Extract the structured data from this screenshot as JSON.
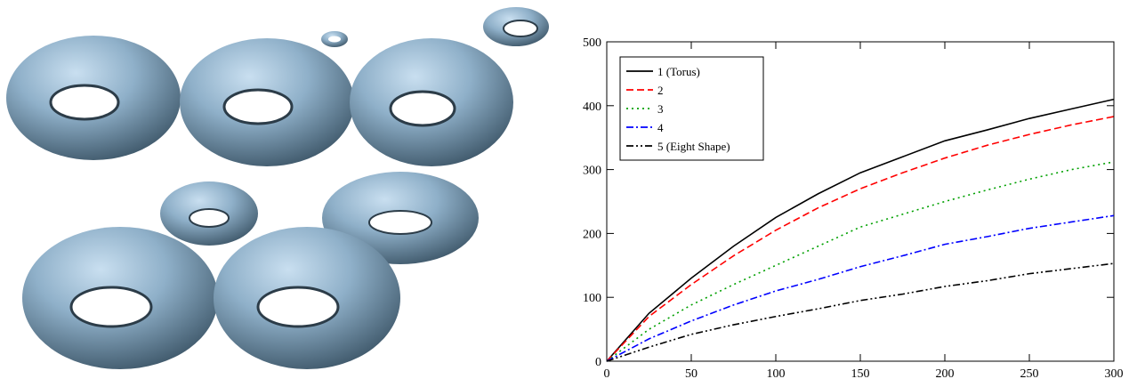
{
  "chart_data": {
    "type": "line",
    "x": [
      0,
      25,
      50,
      75,
      100,
      125,
      150,
      175,
      200,
      225,
      250,
      275,
      300
    ],
    "series": [
      {
        "name": "1 (Torus)",
        "color": "#000000",
        "style": "solid",
        "values": [
          0,
          75,
          130,
          180,
          225,
          262,
          295,
          320,
          345,
          362,
          380,
          395,
          410
        ]
      },
      {
        "name": "2",
        "color": "#ff0000",
        "style": "dashed",
        "values": [
          0,
          70,
          120,
          165,
          205,
          240,
          270,
          295,
          318,
          338,
          355,
          370,
          383
        ]
      },
      {
        "name": "3",
        "color": "#00a000",
        "style": "dotted",
        "values": [
          0,
          50,
          88,
          120,
          150,
          180,
          210,
          230,
          250,
          268,
          285,
          300,
          312
        ]
      },
      {
        "name": "4",
        "color": "#0000ff",
        "style": "dashdot",
        "values": [
          0,
          35,
          63,
          88,
          110,
          128,
          148,
          165,
          183,
          195,
          208,
          218,
          228
        ]
      },
      {
        "name": "5 (Eight Shape)",
        "color": "#000000",
        "style": "dashdotdot",
        "values": [
          0,
          22,
          42,
          57,
          70,
          82,
          95,
          105,
          117,
          126,
          137,
          145,
          153
        ]
      }
    ],
    "xlim": [
      0,
      300
    ],
    "xticks": [
      0,
      50,
      100,
      150,
      200,
      250,
      300
    ],
    "ylim": [
      0,
      500
    ],
    "yticks": [
      0,
      100,
      200,
      300,
      400,
      500
    ],
    "legend": "upper left"
  }
}
